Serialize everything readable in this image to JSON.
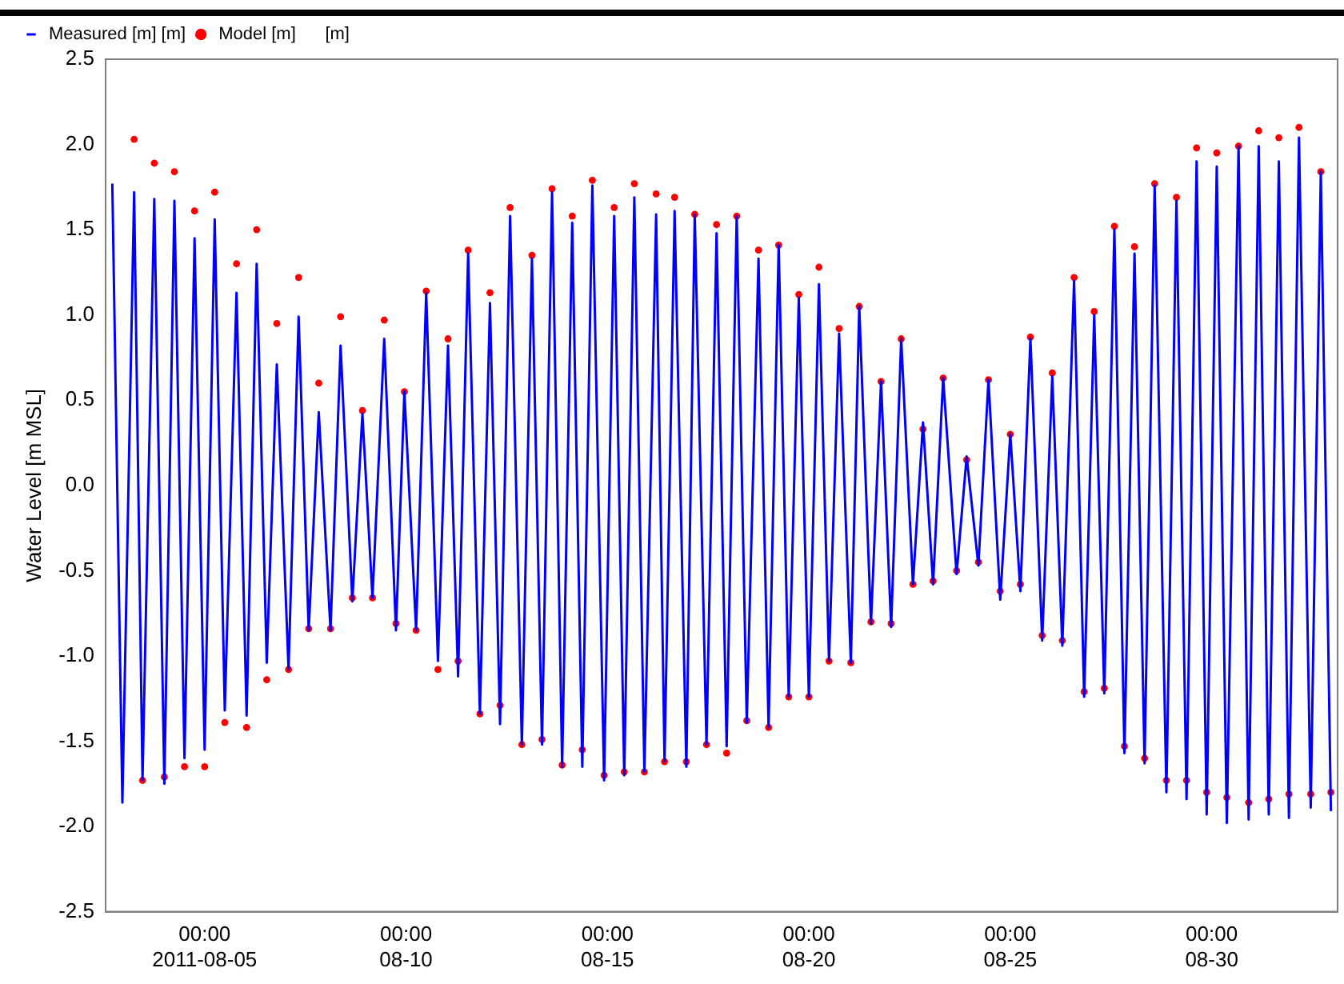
{
  "chart_data": {
    "type": "line",
    "ylabel": "Water Level [m MSL]",
    "legend": "top left",
    "xlim": [
      "2011-08-02T13:00",
      "2011-09-02T03:00"
    ],
    "xticks": [
      {
        "value": "2011-08-05T00:00",
        "label": "00:00\n2011-08-05"
      },
      {
        "value": "2011-08-10T00:00",
        "label": "00:00\n08-10"
      },
      {
        "value": "2011-08-15T00:00",
        "label": "00:00\n08-15"
      },
      {
        "value": "2011-08-20T00:00",
        "label": "00:00\n08-20"
      },
      {
        "value": "2011-08-25T00:00",
        "label": "00:00\n08-25"
      },
      {
        "value": "2011-08-30T00:00",
        "label": "00:00\n08-30"
      }
    ],
    "ylim": [
      -2.5,
      2.5
    ],
    "yticks": [
      {
        "value": -2.5,
        "label": "-2.5"
      },
      {
        "value": -2,
        "label": "-2.0"
      },
      {
        "value": -1.5,
        "label": "-1.5"
      },
      {
        "value": -1,
        "label": "-1.0"
      },
      {
        "value": -0.5,
        "label": "-0.5"
      },
      {
        "value": 0,
        "label": "0.0"
      },
      {
        "value": 0.5,
        "label": "0.5"
      },
      {
        "value": 1,
        "label": "1.0"
      },
      {
        "value": 1.5,
        "label": "1.5"
      },
      {
        "value": 2,
        "label": "2.0"
      },
      {
        "value": 2.5,
        "label": "2.5"
      }
    ],
    "series": [
      {
        "name": "Measured [m] [m]",
        "type": "line",
        "color": "#0000ff",
        "marker": "none",
        "line_style": "solid",
        "x": [
          "2011-08-02T17:00",
          "2011-08-02T23:00",
          "2011-08-03T06:00",
          "2011-08-03T11:00",
          "2011-08-03T18:00",
          "2011-08-04T00:00",
          "2011-08-04T06:00",
          "2011-08-04T12:00",
          "2011-08-04T18:00",
          "2011-08-05T00:00",
          "2011-08-05T06:00",
          "2011-08-05T12:00",
          "2011-08-05T19:00",
          "2011-08-06T01:00",
          "2011-08-06T07:00",
          "2011-08-06T13:00",
          "2011-08-06T19:00",
          "2011-08-07T02:00",
          "2011-08-07T08:00",
          "2011-08-07T14:00",
          "2011-08-07T20:00",
          "2011-08-08T03:00",
          "2011-08-08T09:00",
          "2011-08-08T16:00",
          "2011-08-08T22:00",
          "2011-08-09T04:00",
          "2011-08-09T11:00",
          "2011-08-09T18:00",
          "2011-08-09T23:00",
          "2011-08-10T06:00",
          "2011-08-10T12:00",
          "2011-08-10T19:00",
          "2011-08-11T01:00",
          "2011-08-11T07:00",
          "2011-08-11T13:00",
          "2011-08-11T20:00",
          "2011-08-12T02:00",
          "2011-08-12T08:00",
          "2011-08-12T14:00",
          "2011-08-12T21:00",
          "2011-08-13T03:00",
          "2011-08-13T09:00",
          "2011-08-13T15:00",
          "2011-08-13T21:00",
          "2011-08-14T03:00",
          "2011-08-14T09:00",
          "2011-08-14T15:00",
          "2011-08-14T22:00",
          "2011-08-15T04:00",
          "2011-08-15T10:00",
          "2011-08-15T16:00",
          "2011-08-15T22:00",
          "2011-08-16T05:00",
          "2011-08-16T10:00",
          "2011-08-16T16:00",
          "2011-08-16T23:00",
          "2011-08-17T04:00",
          "2011-08-17T11:00",
          "2011-08-17T17:00",
          "2011-08-17T23:00",
          "2011-08-18T05:00",
          "2011-08-18T11:00",
          "2011-08-18T18:00",
          "2011-08-19T00:00",
          "2011-08-19T06:00",
          "2011-08-19T12:00",
          "2011-08-19T18:00",
          "2011-08-20T00:00",
          "2011-08-20T06:00",
          "2011-08-20T12:00",
          "2011-08-20T18:00",
          "2011-08-21T01:00",
          "2011-08-21T06:00",
          "2011-08-21T13:00",
          "2011-08-21T19:00",
          "2011-08-22T01:00",
          "2011-08-22T07:00",
          "2011-08-22T14:00",
          "2011-08-22T20:00",
          "2011-08-23T02:00",
          "2011-08-23T08:00",
          "2011-08-23T16:00",
          "2011-08-23T22:00",
          "2011-08-24T05:00",
          "2011-08-24T11:00",
          "2011-08-24T18:00",
          "2011-08-25T00:00",
          "2011-08-25T06:00",
          "2011-08-25T12:00",
          "2011-08-25T19:00",
          "2011-08-26T01:00",
          "2011-08-26T07:00",
          "2011-08-26T14:00",
          "2011-08-26T20:00",
          "2011-08-27T02:00",
          "2011-08-27T08:00",
          "2011-08-27T14:00",
          "2011-08-27T20:00",
          "2011-08-28T02:00",
          "2011-08-28T08:00",
          "2011-08-28T14:00",
          "2011-08-28T21:00",
          "2011-08-29T03:00",
          "2011-08-29T09:00",
          "2011-08-29T15:00",
          "2011-08-29T21:00",
          "2011-08-30T03:00",
          "2011-08-30T09:00",
          "2011-08-30T16:00",
          "2011-08-30T22:00",
          "2011-08-31T04:00",
          "2011-08-31T10:00",
          "2011-08-31T16:00",
          "2011-08-31T22:00",
          "2011-09-01T04:00",
          "2011-09-01T11:00",
          "2011-09-01T17:00",
          "2011-09-01T23:00"
        ],
        "values": [
          1.77,
          -1.86,
          1.72,
          -1.73,
          1.68,
          -1.75,
          1.67,
          -1.6,
          1.45,
          -1.55,
          1.56,
          -1.32,
          1.13,
          -1.35,
          1.3,
          -1.04,
          0.71,
          -1.08,
          0.99,
          -0.85,
          0.43,
          -0.85,
          0.82,
          -0.68,
          0.42,
          -0.66,
          0.86,
          -0.85,
          0.55,
          -0.85,
          1.13,
          -1.03,
          0.82,
          -1.12,
          1.36,
          -1.34,
          1.07,
          -1.4,
          1.58,
          -1.52,
          1.33,
          -1.52,
          1.72,
          -1.65,
          1.54,
          -1.65,
          1.76,
          -1.73,
          1.58,
          -1.7,
          1.69,
          -1.68,
          1.59,
          -1.62,
          1.61,
          -1.65,
          1.59,
          -1.52,
          1.48,
          -1.53,
          1.58,
          -1.39,
          1.33,
          -1.42,
          1.41,
          -1.24,
          1.1,
          -1.24,
          1.18,
          -1.03,
          0.89,
          -1.04,
          1.05,
          -0.81,
          0.61,
          -0.83,
          0.86,
          -0.58,
          0.37,
          -0.58,
          0.63,
          -0.52,
          0.17,
          -0.47,
          0.62,
          -0.67,
          0.3,
          -0.62,
          0.86,
          -0.91,
          0.64,
          -0.94,
          1.2,
          -1.24,
          1.0,
          -1.22,
          1.5,
          -1.57,
          1.36,
          -1.63,
          1.76,
          -1.8,
          1.67,
          -1.84,
          1.9,
          -1.93,
          1.87,
          -1.98,
          1.99,
          -1.96,
          1.99,
          -1.93,
          1.9,
          -1.95,
          2.04,
          -1.89,
          1.84,
          -1.91
        ]
      },
      {
        "name": "Model [m]      [m]",
        "type": "scatter",
        "color": "#ff0000",
        "marker": "circle",
        "x": [
          "2011-08-03T06:00",
          "2011-08-03T11:00",
          "2011-08-03T18:00",
          "2011-08-04T00:00",
          "2011-08-04T06:00",
          "2011-08-04T12:00",
          "2011-08-04T18:00",
          "2011-08-05T00:00",
          "2011-08-05T06:00",
          "2011-08-05T12:00",
          "2011-08-05T19:00",
          "2011-08-06T01:00",
          "2011-08-06T07:00",
          "2011-08-06T13:00",
          "2011-08-06T19:00",
          "2011-08-07T02:00",
          "2011-08-07T08:00",
          "2011-08-07T14:00",
          "2011-08-07T20:00",
          "2011-08-08T03:00",
          "2011-08-08T09:00",
          "2011-08-08T16:00",
          "2011-08-08T22:00",
          "2011-08-09T04:00",
          "2011-08-09T11:00",
          "2011-08-09T18:00",
          "2011-08-09T23:00",
          "2011-08-10T06:00",
          "2011-08-10T12:00",
          "2011-08-10T19:00",
          "2011-08-11T01:00",
          "2011-08-11T07:00",
          "2011-08-11T13:00",
          "2011-08-11T20:00",
          "2011-08-12T02:00",
          "2011-08-12T08:00",
          "2011-08-12T14:00",
          "2011-08-12T21:00",
          "2011-08-13T03:00",
          "2011-08-13T09:00",
          "2011-08-13T15:00",
          "2011-08-13T21:00",
          "2011-08-14T03:00",
          "2011-08-14T09:00",
          "2011-08-14T15:00",
          "2011-08-14T22:00",
          "2011-08-15T04:00",
          "2011-08-15T10:00",
          "2011-08-15T16:00",
          "2011-08-15T22:00",
          "2011-08-16T05:00",
          "2011-08-16T10:00",
          "2011-08-16T16:00",
          "2011-08-16T23:00",
          "2011-08-17T04:00",
          "2011-08-17T11:00",
          "2011-08-17T17:00",
          "2011-08-17T23:00",
          "2011-08-18T05:00",
          "2011-08-18T11:00",
          "2011-08-18T18:00",
          "2011-08-19T00:00",
          "2011-08-19T06:00",
          "2011-08-19T12:00",
          "2011-08-19T18:00",
          "2011-08-20T00:00",
          "2011-08-20T06:00",
          "2011-08-20T12:00",
          "2011-08-20T18:00",
          "2011-08-21T01:00",
          "2011-08-21T06:00",
          "2011-08-21T13:00",
          "2011-08-21T19:00",
          "2011-08-22T01:00",
          "2011-08-22T07:00",
          "2011-08-22T14:00",
          "2011-08-22T20:00",
          "2011-08-23T02:00",
          "2011-08-23T08:00",
          "2011-08-23T16:00",
          "2011-08-23T22:00",
          "2011-08-24T05:00",
          "2011-08-24T11:00",
          "2011-08-24T18:00",
          "2011-08-25T00:00",
          "2011-08-25T06:00",
          "2011-08-25T12:00",
          "2011-08-25T19:00",
          "2011-08-26T01:00",
          "2011-08-26T07:00",
          "2011-08-26T14:00",
          "2011-08-26T20:00",
          "2011-08-27T02:00",
          "2011-08-27T08:00",
          "2011-08-27T14:00",
          "2011-08-27T20:00",
          "2011-08-28T02:00",
          "2011-08-28T08:00",
          "2011-08-28T14:00",
          "2011-08-28T21:00",
          "2011-08-29T03:00",
          "2011-08-29T09:00",
          "2011-08-29T15:00",
          "2011-08-29T21:00",
          "2011-08-30T03:00",
          "2011-08-30T09:00",
          "2011-08-30T16:00",
          "2011-08-30T22:00",
          "2011-08-31T04:00",
          "2011-08-31T10:00",
          "2011-08-31T16:00",
          "2011-08-31T22:00",
          "2011-09-01T04:00",
          "2011-09-01T11:00",
          "2011-09-01T17:00",
          "2011-09-01T23:00"
        ],
        "values": [
          2.03,
          -1.73,
          1.89,
          -1.71,
          1.84,
          -1.65,
          1.61,
          -1.65,
          1.72,
          -1.39,
          1.3,
          -1.42,
          1.5,
          -1.14,
          0.95,
          -1.08,
          1.22,
          -0.84,
          0.6,
          -0.84,
          0.99,
          -0.66,
          0.44,
          -0.66,
          0.97,
          -0.81,
          0.55,
          -0.85,
          1.14,
          -1.08,
          0.86,
          -1.03,
          1.38,
          -1.34,
          1.13,
          -1.29,
          1.63,
          -1.52,
          1.35,
          -1.49,
          1.74,
          -1.64,
          1.58,
          -1.55,
          1.79,
          -1.7,
          1.63,
          -1.68,
          1.77,
          -1.68,
          1.71,
          -1.62,
          1.69,
          -1.62,
          1.59,
          -1.52,
          1.53,
          -1.57,
          1.58,
          -1.38,
          1.38,
          -1.42,
          1.41,
          -1.24,
          1.12,
          -1.24,
          1.28,
          -1.03,
          0.92,
          -1.04,
          1.05,
          -0.8,
          0.61,
          -0.81,
          0.86,
          -0.58,
          0.33,
          -0.56,
          0.63,
          -0.5,
          0.15,
          -0.45,
          0.62,
          -0.62,
          0.3,
          -0.58,
          0.87,
          -0.88,
          0.66,
          -0.91,
          1.22,
          -1.21,
          1.02,
          -1.19,
          1.52,
          -1.53,
          1.4,
          -1.6,
          1.77,
          -1.73,
          1.69,
          -1.73,
          1.98,
          -1.8,
          1.95,
          -1.83,
          1.99,
          -1.86,
          2.08,
          -1.84,
          2.04,
          -1.81,
          2.1,
          -1.81,
          1.84,
          -1.8
        ]
      }
    ]
  }
}
